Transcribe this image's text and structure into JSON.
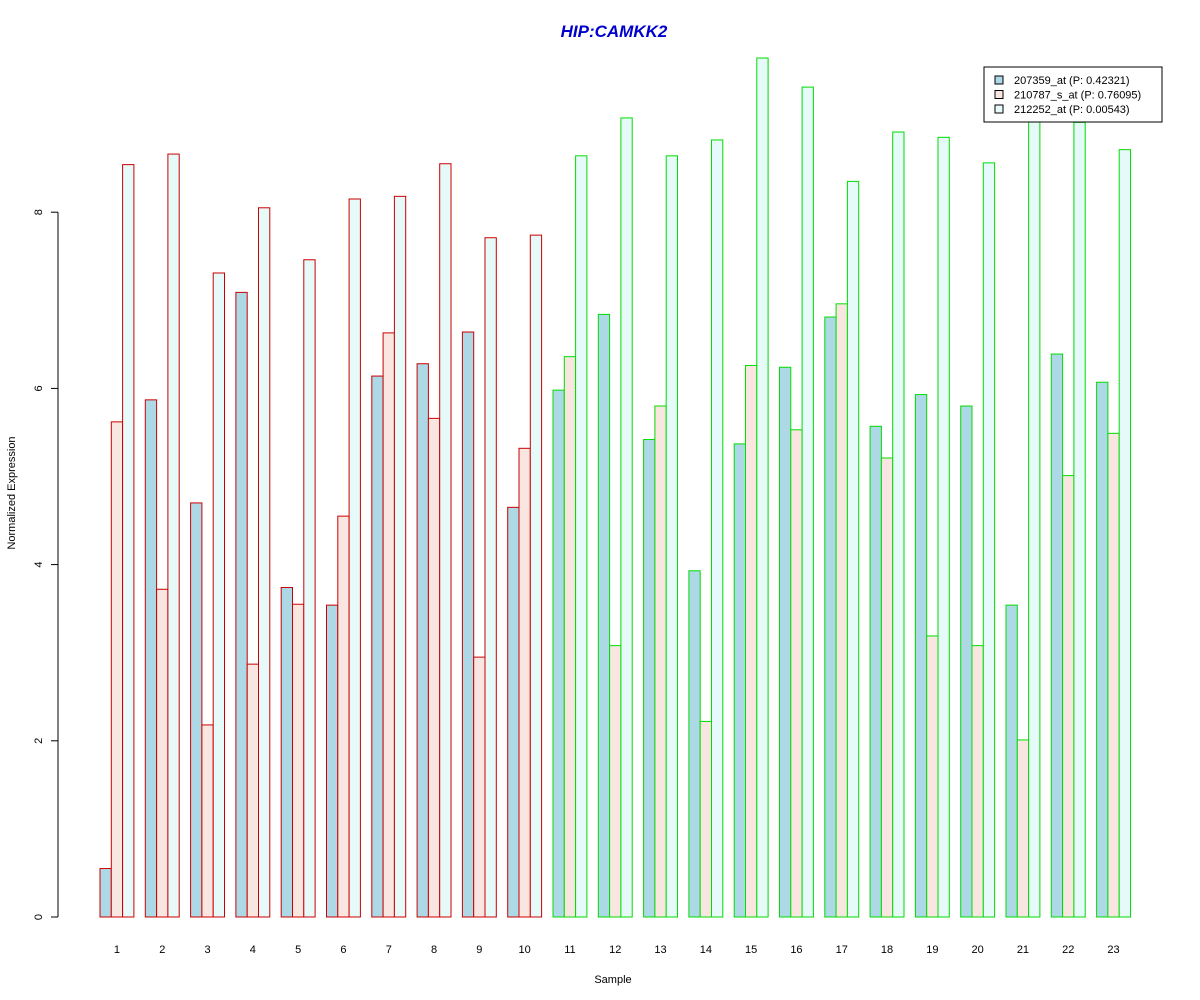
{
  "chart_data": {
    "type": "bar",
    "title": "HIP:CAMKK2",
    "xlabel": "Sample",
    "ylabel": "Normalized Expression",
    "ylim": [
      0,
      9.8
    ],
    "yticks": [
      0,
      2,
      4,
      6,
      8
    ],
    "categories": [
      "1",
      "2",
      "3",
      "4",
      "5",
      "6",
      "7",
      "8",
      "9",
      "10",
      "11",
      "12",
      "13",
      "14",
      "15",
      "16",
      "17",
      "18",
      "19",
      "20",
      "21",
      "22",
      "23"
    ],
    "group_border_colors": [
      "#cc0000",
      "#cc0000",
      "#cc0000",
      "#cc0000",
      "#cc0000",
      "#cc0000",
      "#cc0000",
      "#cc0000",
      "#cc0000",
      "#cc0000",
      "#00dd00",
      "#00dd00",
      "#00dd00",
      "#00dd00",
      "#00dd00",
      "#00dd00",
      "#00dd00",
      "#00dd00",
      "#00dd00",
      "#00dd00",
      "#00dd00",
      "#00dd00",
      "#00dd00"
    ],
    "series": [
      {
        "name": "207359_at (P: 0.42321)",
        "color": "#add8e6",
        "values": [
          0.55,
          5.87,
          4.7,
          7.09,
          3.74,
          3.54,
          6.14,
          6.28,
          6.64,
          4.65,
          5.98,
          6.84,
          5.42,
          3.93,
          5.37,
          6.24,
          6.81,
          5.57,
          5.93,
          5.8,
          3.54,
          6.39,
          6.07
        ]
      },
      {
        "name": "210787_s_at (P: 0.76095)",
        "color": "#fae6e0",
        "values": [
          5.62,
          3.72,
          2.18,
          2.87,
          3.55,
          4.55,
          6.63,
          5.66,
          2.95,
          5.32,
          6.36,
          3.08,
          5.8,
          2.22,
          6.26,
          5.53,
          6.96,
          5.21,
          3.19,
          3.08,
          2.01,
          5.01,
          5.49
        ]
      },
      {
        "name": "212252_at (P: 0.00543)",
        "color": "#e6fafa",
        "values": [
          8.54,
          8.66,
          7.31,
          8.05,
          7.46,
          8.15,
          8.18,
          8.55,
          7.71,
          7.74,
          8.64,
          9.07,
          8.64,
          8.82,
          9.75,
          9.42,
          8.35,
          8.91,
          8.85,
          8.56,
          9.1,
          9.02,
          8.71
        ]
      }
    ],
    "legend_position": "top-right"
  }
}
